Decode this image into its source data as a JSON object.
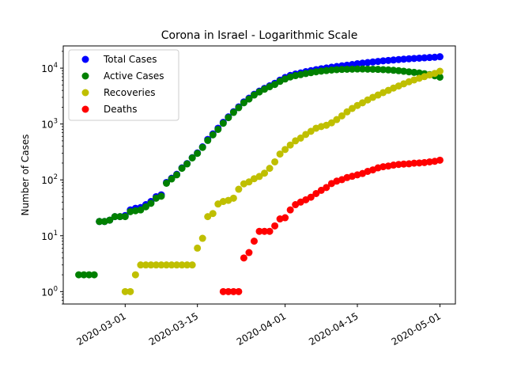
{
  "chart_data": {
    "type": "scatter",
    "title": "Corona in Israel - Logarithmic Scale",
    "xlabel": "",
    "ylabel": "Number of Cases",
    "yscale": "log",
    "ylim": [
      0.6,
      25000
    ],
    "xlim": [
      "2020-02-18",
      "2020-05-04"
    ],
    "x_ticks": [
      "2020-03-01",
      "2020-03-15",
      "2020-04-01",
      "2020-04-15",
      "2020-05-01"
    ],
    "y_ticks": [
      {
        "value": 1,
        "base": "10",
        "exp": "0"
      },
      {
        "value": 10,
        "base": "10",
        "exp": "1"
      },
      {
        "value": 100,
        "base": "10",
        "exp": "2"
      },
      {
        "value": 1000,
        "base": "10",
        "exp": "3"
      },
      {
        "value": 10000,
        "base": "10",
        "exp": "4"
      }
    ],
    "grid": false,
    "legend_position": "top-left",
    "series": [
      {
        "name": "Total Cases",
        "color": "#0000ff",
        "points": [
          [
            "2020-02-25",
            18
          ],
          [
            "2020-02-26",
            18
          ],
          [
            "2020-02-27",
            19
          ],
          [
            "2020-02-28",
            22
          ],
          [
            "2020-02-29",
            22
          ],
          [
            "2020-03-01",
            23
          ],
          [
            "2020-03-02",
            29
          ],
          [
            "2020-03-03",
            31
          ],
          [
            "2020-03-04",
            32
          ],
          [
            "2020-03-05",
            36
          ],
          [
            "2020-03-06",
            41
          ],
          [
            "2020-03-07",
            50
          ],
          [
            "2020-03-08",
            54
          ],
          [
            "2020-03-09",
            90
          ],
          [
            "2020-03-10",
            107
          ],
          [
            "2020-03-11",
            126
          ],
          [
            "2020-03-12",
            164
          ],
          [
            "2020-03-13",
            196
          ],
          [
            "2020-03-14",
            250
          ],
          [
            "2020-03-15",
            304
          ],
          [
            "2020-03-16",
            390
          ],
          [
            "2020-03-17",
            530
          ],
          [
            "2020-03-18",
            665
          ],
          [
            "2020-03-19",
            840
          ],
          [
            "2020-03-20",
            1071
          ],
          [
            "2020-03-21",
            1342
          ],
          [
            "2020-03-22",
            1659
          ],
          [
            "2020-03-23",
            2030
          ],
          [
            "2020-03-24",
            2490
          ],
          [
            "2020-03-25",
            2900
          ],
          [
            "2020-03-26",
            3400
          ],
          [
            "2020-03-27",
            3870
          ],
          [
            "2020-03-28",
            4350
          ],
          [
            "2020-03-29",
            4830
          ],
          [
            "2020-03-30",
            5360
          ],
          [
            "2020-03-31",
            6100
          ],
          [
            "2020-04-01",
            6800
          ],
          [
            "2020-04-02",
            7400
          ],
          [
            "2020-04-03",
            7850
          ],
          [
            "2020-04-04",
            8200
          ],
          [
            "2020-04-05",
            8650
          ],
          [
            "2020-04-06",
            9000
          ],
          [
            "2020-04-07",
            9400
          ],
          [
            "2020-04-08",
            9750
          ],
          [
            "2020-04-09",
            10050
          ],
          [
            "2020-04-10",
            10400
          ],
          [
            "2020-04-11",
            10700
          ],
          [
            "2020-04-12",
            11000
          ],
          [
            "2020-04-13",
            11300
          ],
          [
            "2020-04-14",
            11600
          ],
          [
            "2020-04-15",
            12000
          ],
          [
            "2020-04-16",
            12300
          ],
          [
            "2020-04-17",
            12600
          ],
          [
            "2020-04-18",
            12900
          ],
          [
            "2020-04-19",
            13200
          ],
          [
            "2020-04-20",
            13500
          ],
          [
            "2020-04-21",
            13750
          ],
          [
            "2020-04-22",
            14000
          ],
          [
            "2020-04-23",
            14250
          ],
          [
            "2020-04-24",
            14500
          ],
          [
            "2020-04-25",
            14700
          ],
          [
            "2020-04-26",
            14900
          ],
          [
            "2020-04-27",
            15100
          ],
          [
            "2020-04-28",
            15300
          ],
          [
            "2020-04-29",
            15500
          ],
          [
            "2020-04-30",
            15700
          ],
          [
            "2020-05-01",
            16000
          ]
        ]
      },
      {
        "name": "Active Cases",
        "color": "#008000",
        "points": [
          [
            "2020-02-21",
            2
          ],
          [
            "2020-02-22",
            2
          ],
          [
            "2020-02-23",
            2
          ],
          [
            "2020-02-24",
            2
          ],
          [
            "2020-02-25",
            18
          ],
          [
            "2020-02-26",
            18
          ],
          [
            "2020-02-27",
            19
          ],
          [
            "2020-02-28",
            22
          ],
          [
            "2020-02-29",
            22
          ],
          [
            "2020-03-01",
            22
          ],
          [
            "2020-03-02",
            27
          ],
          [
            "2020-03-03",
            28
          ],
          [
            "2020-03-04",
            29
          ],
          [
            "2020-03-05",
            33
          ],
          [
            "2020-03-06",
            38
          ],
          [
            "2020-03-07",
            47
          ],
          [
            "2020-03-08",
            51
          ],
          [
            "2020-03-09",
            87
          ],
          [
            "2020-03-10",
            104
          ],
          [
            "2020-03-11",
            123
          ],
          [
            "2020-03-12",
            161
          ],
          [
            "2020-03-13",
            193
          ],
          [
            "2020-03-14",
            247
          ],
          [
            "2020-03-15",
            298
          ],
          [
            "2020-03-16",
            381
          ],
          [
            "2020-03-17",
            508
          ],
          [
            "2020-03-18",
            640
          ],
          [
            "2020-03-19",
            800
          ],
          [
            "2020-03-20",
            1030
          ],
          [
            "2020-03-21",
            1300
          ],
          [
            "2020-03-22",
            1610
          ],
          [
            "2020-03-23",
            1960
          ],
          [
            "2020-03-24",
            2400
          ],
          [
            "2020-03-25",
            2800
          ],
          [
            "2020-03-26",
            3300
          ],
          [
            "2020-03-27",
            3750
          ],
          [
            "2020-03-28",
            4200
          ],
          [
            "2020-03-29",
            4650
          ],
          [
            "2020-03-30",
            5100
          ],
          [
            "2020-03-31",
            5800
          ],
          [
            "2020-04-01",
            6400
          ],
          [
            "2020-04-02",
            6950
          ],
          [
            "2020-04-03",
            7350
          ],
          [
            "2020-04-04",
            7650
          ],
          [
            "2020-04-05",
            8000
          ],
          [
            "2020-04-06",
            8300
          ],
          [
            "2020-04-07",
            8600
          ],
          [
            "2020-04-08",
            8850
          ],
          [
            "2020-04-09",
            9050
          ],
          [
            "2020-04-10",
            9250
          ],
          [
            "2020-04-11",
            9400
          ],
          [
            "2020-04-12",
            9500
          ],
          [
            "2020-04-13",
            9550
          ],
          [
            "2020-04-14",
            9600
          ],
          [
            "2020-04-15",
            9650
          ],
          [
            "2020-04-16",
            9650
          ],
          [
            "2020-04-17",
            9600
          ],
          [
            "2020-04-18",
            9550
          ],
          [
            "2020-04-19",
            9500
          ],
          [
            "2020-04-20",
            9400
          ],
          [
            "2020-04-21",
            9300
          ],
          [
            "2020-04-22",
            9150
          ],
          [
            "2020-04-23",
            9000
          ],
          [
            "2020-04-24",
            8800
          ],
          [
            "2020-04-25",
            8600
          ],
          [
            "2020-04-26",
            8400
          ],
          [
            "2020-04-27",
            8200
          ],
          [
            "2020-04-28",
            7950
          ],
          [
            "2020-04-29",
            7650
          ],
          [
            "2020-04-30",
            7300
          ],
          [
            "2020-05-01",
            6900
          ]
        ]
      },
      {
        "name": "Recoveries",
        "color": "#bfbf00",
        "points": [
          [
            "2020-03-01",
            1
          ],
          [
            "2020-03-02",
            1
          ],
          [
            "2020-03-03",
            2
          ],
          [
            "2020-03-04",
            3
          ],
          [
            "2020-03-05",
            3
          ],
          [
            "2020-03-06",
            3
          ],
          [
            "2020-03-07",
            3
          ],
          [
            "2020-03-08",
            3
          ],
          [
            "2020-03-09",
            3
          ],
          [
            "2020-03-10",
            3
          ],
          [
            "2020-03-11",
            3
          ],
          [
            "2020-03-12",
            3
          ],
          [
            "2020-03-13",
            3
          ],
          [
            "2020-03-14",
            3
          ],
          [
            "2020-03-15",
            6
          ],
          [
            "2020-03-16",
            9
          ],
          [
            "2020-03-17",
            22
          ],
          [
            "2020-03-18",
            25
          ],
          [
            "2020-03-19",
            37
          ],
          [
            "2020-03-20",
            41
          ],
          [
            "2020-03-21",
            43
          ],
          [
            "2020-03-22",
            47
          ],
          [
            "2020-03-23",
            68
          ],
          [
            "2020-03-24",
            85
          ],
          [
            "2020-03-25",
            92
          ],
          [
            "2020-03-26",
            105
          ],
          [
            "2020-03-27",
            115
          ],
          [
            "2020-03-28",
            132
          ],
          [
            "2020-03-29",
            161
          ],
          [
            "2020-03-30",
            210
          ],
          [
            "2020-03-31",
            290
          ],
          [
            "2020-04-01",
            350
          ],
          [
            "2020-04-02",
            420
          ],
          [
            "2020-04-03",
            500
          ],
          [
            "2020-04-04",
            560
          ],
          [
            "2020-04-05",
            650
          ],
          [
            "2020-04-06",
            740
          ],
          [
            "2020-04-07",
            840
          ],
          [
            "2020-04-08",
            900
          ],
          [
            "2020-04-09",
            950
          ],
          [
            "2020-04-10",
            1050
          ],
          [
            "2020-04-11",
            1200
          ],
          [
            "2020-04-12",
            1400
          ],
          [
            "2020-04-13",
            1650
          ],
          [
            "2020-04-14",
            1900
          ],
          [
            "2020-04-15",
            2150
          ],
          [
            "2020-04-16",
            2400
          ],
          [
            "2020-04-17",
            2700
          ],
          [
            "2020-04-18",
            3000
          ],
          [
            "2020-04-19",
            3300
          ],
          [
            "2020-04-20",
            3650
          ],
          [
            "2020-04-21",
            4000
          ],
          [
            "2020-04-22",
            4400
          ],
          [
            "2020-04-23",
            4800
          ],
          [
            "2020-04-24",
            5250
          ],
          [
            "2020-04-25",
            5700
          ],
          [
            "2020-04-26",
            6150
          ],
          [
            "2020-04-27",
            6600
          ],
          [
            "2020-04-28",
            7050
          ],
          [
            "2020-04-29",
            7550
          ],
          [
            "2020-04-30",
            8050
          ],
          [
            "2020-05-01",
            8800
          ]
        ]
      },
      {
        "name": "Deaths",
        "color": "#ff0000",
        "points": [
          [
            "2020-03-20",
            1
          ],
          [
            "2020-03-21",
            1
          ],
          [
            "2020-03-22",
            1
          ],
          [
            "2020-03-23",
            1
          ],
          [
            "2020-03-24",
            4
          ],
          [
            "2020-03-25",
            5
          ],
          [
            "2020-03-26",
            8
          ],
          [
            "2020-03-27",
            12
          ],
          [
            "2020-03-28",
            12
          ],
          [
            "2020-03-29",
            12
          ],
          [
            "2020-03-30",
            15
          ],
          [
            "2020-03-31",
            20
          ],
          [
            "2020-04-01",
            21
          ],
          [
            "2020-04-02",
            29
          ],
          [
            "2020-04-03",
            36
          ],
          [
            "2020-04-04",
            40
          ],
          [
            "2020-04-05",
            44
          ],
          [
            "2020-04-06",
            49
          ],
          [
            "2020-04-07",
            57
          ],
          [
            "2020-04-08",
            65
          ],
          [
            "2020-04-09",
            73
          ],
          [
            "2020-04-10",
            86
          ],
          [
            "2020-04-11",
            95
          ],
          [
            "2020-04-12",
            101
          ],
          [
            "2020-04-13",
            110
          ],
          [
            "2020-04-14",
            116
          ],
          [
            "2020-04-15",
            123
          ],
          [
            "2020-04-16",
            130
          ],
          [
            "2020-04-17",
            142
          ],
          [
            "2020-04-18",
            151
          ],
          [
            "2020-04-19",
            164
          ],
          [
            "2020-04-20",
            172
          ],
          [
            "2020-04-21",
            177
          ],
          [
            "2020-04-22",
            184
          ],
          [
            "2020-04-23",
            189
          ],
          [
            "2020-04-24",
            192
          ],
          [
            "2020-04-25",
            194
          ],
          [
            "2020-04-26",
            199
          ],
          [
            "2020-04-27",
            201
          ],
          [
            "2020-04-28",
            204
          ],
          [
            "2020-04-29",
            210
          ],
          [
            "2020-04-30",
            215
          ],
          [
            "2020-05-01",
            225
          ]
        ]
      }
    ]
  }
}
